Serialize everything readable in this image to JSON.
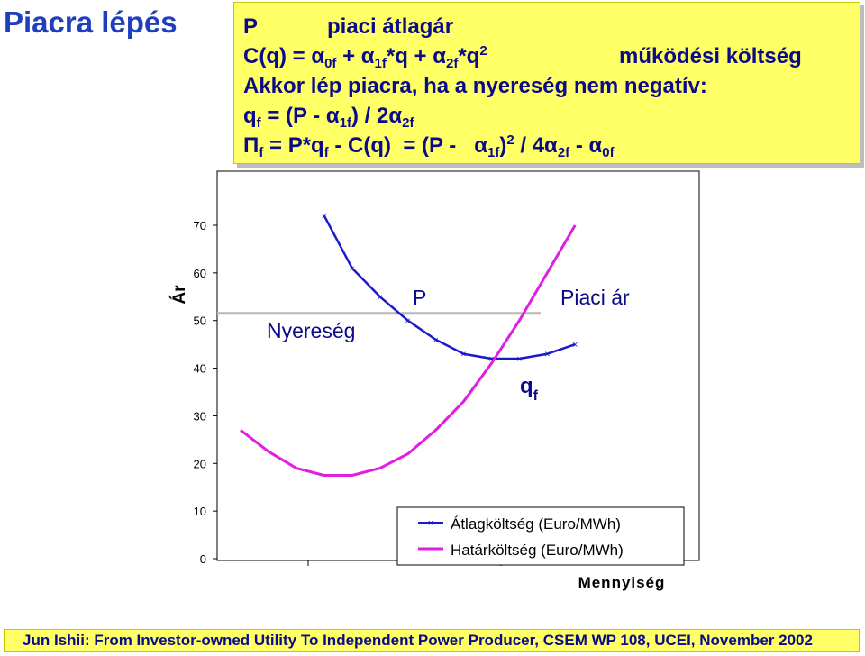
{
  "title": "Piacra lépés",
  "formula": {
    "l1_a": "P",
    "l1_b": "piaci átlagár",
    "l2_a": "C(q) = α",
    "l2_s1": "0f",
    "l2_b": " + α",
    "l2_s2": "1f",
    "l2_c": "*q + α",
    "l2_s3": "2f",
    "l2_d": "*q",
    "l2_p": "2",
    "l2_e": "működési költség",
    "l3": "Akkor lép piacra, ha a nyereség nem negatív:",
    "l4_a": "q",
    "l4_s1": "f",
    "l4_b": " = (P - α",
    "l4_s2": "1f",
    "l4_c": ") / 2α",
    "l4_s3": "2f",
    "l5_a": "Π",
    "l5_s1": "f",
    "l5_b": " = P*q",
    "l5_s2": "f",
    "l5_c": " - C(q)  = (P -   α",
    "l5_s3": "1f",
    "l5_d": ")",
    "l5_p": "2",
    "l5_e": " / 4α",
    "l5_s4": "2f",
    "l5_f": " - α",
    "l5_s5": "0f"
  },
  "footer": "Jun Ishii: From Investor-owned Utility To Independent Power Producer, CSEM WP 108, UCEI, November 2002",
  "chart_data": {
    "type": "line",
    "ylabel": "Ár",
    "xlabel": "Mennyiség",
    "ylim": [
      0,
      70
    ],
    "yticks": [
      0,
      10,
      20,
      30,
      40,
      50,
      60,
      70
    ],
    "x": [
      1,
      2,
      3,
      4,
      5,
      6,
      7,
      8,
      9,
      10,
      11,
      12,
      13,
      14,
      15,
      16,
      17
    ],
    "series": [
      {
        "name": "Átlagköltség (Euro/MWh)",
        "color": "#1a1acc",
        "values": [
          null,
          null,
          null,
          72,
          61,
          55,
          50,
          46,
          43,
          42,
          42,
          43,
          45,
          null,
          null,
          null,
          null
        ]
      },
      {
        "name": "Határköltség (Euro/MWh)",
        "color": "#e01ee0",
        "values": [
          27,
          22.5,
          19,
          17.5,
          17.5,
          19,
          22,
          27,
          33,
          41,
          50,
          60,
          70,
          null,
          null,
          null,
          null
        ]
      }
    ],
    "reference_line": {
      "label": "P",
      "value": 51.5
    },
    "annotations": [
      "Nyereség",
      "P",
      "Piaci ár",
      "q",
      "f"
    ],
    "legend_position": "bottom-right"
  }
}
